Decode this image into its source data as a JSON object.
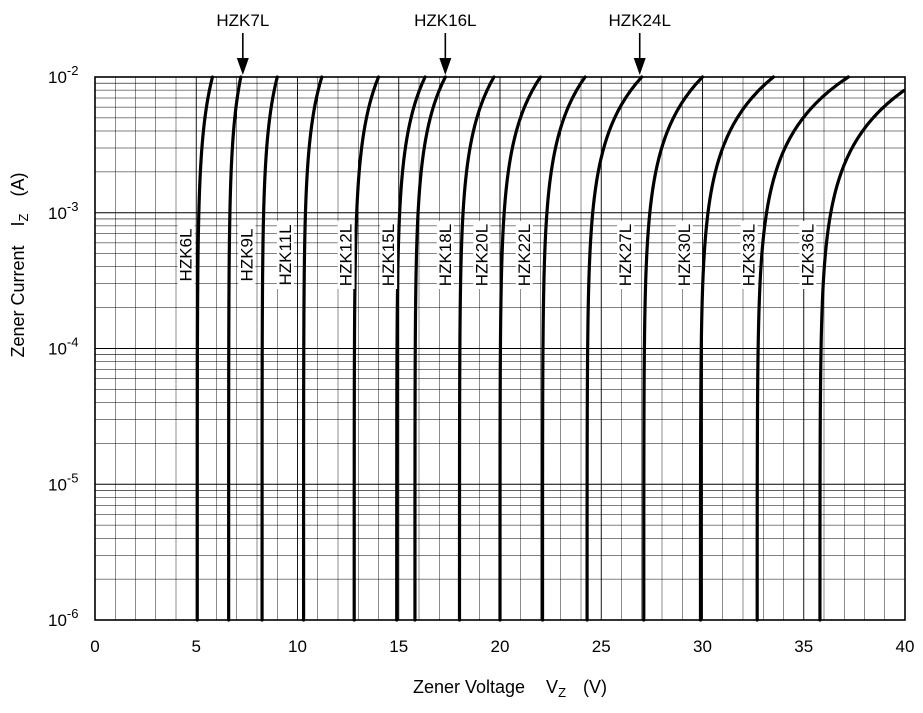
{
  "chart_data": {
    "type": "line",
    "title": "",
    "xlabel": "Zener Voltage",
    "xlabel_symbol": "V",
    "xlabel_symbol_sub": "Z",
    "xlabel_unit": "(V)",
    "ylabel": "Zener Current",
    "ylabel_symbol": "I",
    "ylabel_symbol_sub": "Z",
    "ylabel_unit": "(A)",
    "xlim": [
      0,
      40
    ],
    "ylim": [
      1e-06,
      0.01
    ],
    "y_scale": "log",
    "grid": true,
    "x_ticks": [
      "0",
      "5",
      "10",
      "15",
      "20",
      "25",
      "30",
      "35",
      "40"
    ],
    "y_ticks": [
      {
        "base": "10",
        "exp": "-6"
      },
      {
        "base": "10",
        "exp": "-5"
      },
      {
        "base": "10",
        "exp": "-4"
      },
      {
        "base": "10",
        "exp": "-3"
      },
      {
        "base": "10",
        "exp": "-2"
      }
    ],
    "callouts": [
      {
        "label": "HZK7L",
        "x": 7.3
      },
      {
        "label": "HZK16L",
        "x": 17.3
      },
      {
        "label": "HZK24L",
        "x": 26.9
      }
    ],
    "series": [
      {
        "name": "HZK6L",
        "vz_at_1uA": 5.05,
        "vz_at_10mA": 5.8,
        "label_x": 4.5
      },
      {
        "name": "HZK7L",
        "vz_at_1uA": 6.6,
        "vz_at_10mA": 7.2
      },
      {
        "name": "HZK9L",
        "vz_at_1uA": 8.25,
        "vz_at_10mA": 9.0,
        "label_x": 7.5
      },
      {
        "name": "HZK11L",
        "vz_at_1uA": 10.3,
        "vz_at_10mA": 11.2,
        "label_x": 9.4
      },
      {
        "name": "HZK12L",
        "vz_at_1uA": 12.8,
        "vz_at_10mA": 14.0,
        "label_x": 12.4
      },
      {
        "name": "HZK15L",
        "vz_at_1uA": 14.9,
        "vz_at_10mA": 16.3,
        "label_x": 14.5
      },
      {
        "name": "HZK16L",
        "vz_at_1uA": 15.8,
        "vz_at_10mA": 17.3
      },
      {
        "name": "HZK18L",
        "vz_at_1uA": 18.0,
        "vz_at_10mA": 19.7,
        "label_x": 17.3
      },
      {
        "name": "HZK20L",
        "vz_at_1uA": 20.0,
        "vz_at_10mA": 22.0,
        "label_x": 19.1
      },
      {
        "name": "HZK22L",
        "vz_at_1uA": 22.1,
        "vz_at_10mA": 24.2,
        "label_x": 21.2
      },
      {
        "name": "HZK24L",
        "vz_at_1uA": 24.3,
        "vz_at_10mA": 27.0
      },
      {
        "name": "HZK27L",
        "vz_at_1uA": 27.1,
        "vz_at_10mA": 30.0,
        "label_x": 26.2
      },
      {
        "name": "HZK30L",
        "vz_at_1uA": 29.9,
        "vz_at_10mA": 33.5,
        "label_x": 29.1
      },
      {
        "name": "HZK33L",
        "vz_at_1uA": 32.7,
        "vz_at_10mA": 37.2,
        "label_x": 32.3
      },
      {
        "name": "HZK36L",
        "vz_at_1uA": 35.8,
        "vz_at_10mA": 41.0,
        "label_x": 35.2
      }
    ]
  }
}
